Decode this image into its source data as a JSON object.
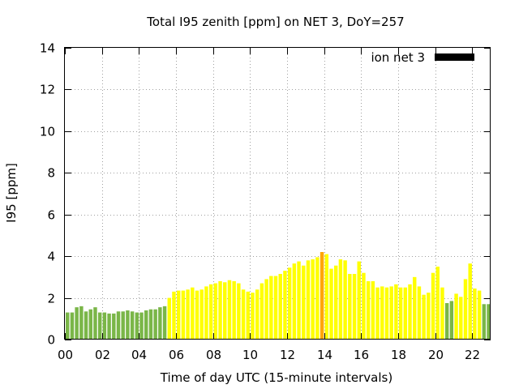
{
  "chart_data": {
    "type": "bar",
    "title": "Total I95 zenith [ppm] on NET 3, DoY=257",
    "xlabel": "Time of day UTC (15-minute intervals)",
    "ylabel": "I95 [ppm]",
    "xlim": [
      0,
      23
    ],
    "ylim": [
      0,
      14
    ],
    "x_ticks": [
      "00",
      "02",
      "04",
      "06",
      "08",
      "10",
      "12",
      "14",
      "16",
      "18",
      "20",
      "22"
    ],
    "y_ticks": [
      "0",
      "2",
      "4",
      "6",
      "8",
      "10",
      "12",
      "14"
    ],
    "grid": true,
    "legend": {
      "label": "ion net 3",
      "position": "top-right",
      "color": "#000000"
    },
    "color_scale": {
      "green": "#7ab648",
      "yellow": "#ffff00",
      "orange": "#ffa500"
    },
    "x": [
      0.0,
      0.25,
      0.5,
      0.75,
      1.0,
      1.25,
      1.5,
      1.75,
      2.0,
      2.25,
      2.5,
      2.75,
      3.0,
      3.25,
      3.5,
      3.75,
      4.0,
      4.25,
      4.5,
      4.75,
      5.0,
      5.25,
      5.5,
      5.75,
      6.0,
      6.25,
      6.5,
      6.75,
      7.0,
      7.25,
      7.5,
      7.75,
      8.0,
      8.25,
      8.5,
      8.75,
      9.0,
      9.25,
      9.5,
      9.75,
      10.0,
      10.25,
      10.5,
      10.75,
      11.0,
      11.25,
      11.5,
      11.75,
      12.0,
      12.25,
      12.5,
      12.75,
      13.0,
      13.25,
      13.5,
      13.75,
      14.0,
      14.25,
      14.5,
      14.75,
      15.0,
      15.25,
      15.5,
      15.75,
      16.0,
      16.25,
      16.5,
      16.75,
      17.0,
      17.25,
      17.5,
      17.75,
      18.0,
      18.25,
      18.5,
      18.75,
      19.0,
      19.25,
      19.5,
      19.75,
      20.0,
      20.25,
      20.5,
      20.75,
      21.0,
      21.25,
      21.5,
      21.75,
      22.0,
      22.25,
      22.5,
      22.75
    ],
    "values": [
      1.3,
      1.3,
      1.55,
      1.6,
      1.35,
      1.45,
      1.55,
      1.3,
      1.3,
      1.25,
      1.25,
      1.35,
      1.35,
      1.4,
      1.35,
      1.3,
      1.3,
      1.4,
      1.45,
      1.45,
      1.55,
      1.6,
      2.0,
      2.3,
      2.35,
      2.35,
      2.4,
      2.5,
      2.35,
      2.4,
      2.55,
      2.65,
      2.7,
      2.8,
      2.75,
      2.85,
      2.8,
      2.7,
      2.4,
      2.3,
      2.25,
      2.4,
      2.7,
      2.9,
      3.05,
      3.05,
      3.15,
      3.3,
      3.45,
      3.65,
      3.75,
      3.55,
      3.8,
      3.85,
      3.95,
      4.2,
      4.1,
      3.4,
      3.55,
      3.85,
      3.8,
      3.15,
      3.15,
      3.75,
      3.2,
      2.8,
      2.8,
      2.5,
      2.55,
      2.5,
      2.55,
      2.65,
      2.5,
      2.5,
      2.65,
      3.0,
      2.55,
      2.15,
      2.25,
      3.2,
      3.5,
      2.5,
      1.75,
      1.85,
      2.2,
      2.05,
      2.9,
      3.65,
      2.45,
      2.35,
      1.7,
      1.7
    ],
    "colors": [
      "green",
      "green",
      "green",
      "green",
      "green",
      "green",
      "green",
      "green",
      "green",
      "green",
      "green",
      "green",
      "green",
      "green",
      "green",
      "green",
      "green",
      "green",
      "green",
      "green",
      "green",
      "green",
      "yellow",
      "yellow",
      "yellow",
      "yellow",
      "yellow",
      "yellow",
      "yellow",
      "yellow",
      "yellow",
      "yellow",
      "yellow",
      "yellow",
      "yellow",
      "yellow",
      "yellow",
      "yellow",
      "yellow",
      "yellow",
      "yellow",
      "yellow",
      "yellow",
      "yellow",
      "yellow",
      "yellow",
      "yellow",
      "yellow",
      "yellow",
      "yellow",
      "yellow",
      "yellow",
      "yellow",
      "yellow",
      "yellow",
      "orange",
      "yellow",
      "yellow",
      "yellow",
      "yellow",
      "yellow",
      "yellow",
      "yellow",
      "yellow",
      "yellow",
      "yellow",
      "yellow",
      "yellow",
      "yellow",
      "yellow",
      "yellow",
      "yellow",
      "yellow",
      "yellow",
      "yellow",
      "yellow",
      "yellow",
      "yellow",
      "yellow",
      "yellow",
      "yellow",
      "yellow",
      "green",
      "green",
      "yellow",
      "yellow",
      "yellow",
      "yellow",
      "yellow",
      "yellow",
      "green",
      "green"
    ]
  }
}
